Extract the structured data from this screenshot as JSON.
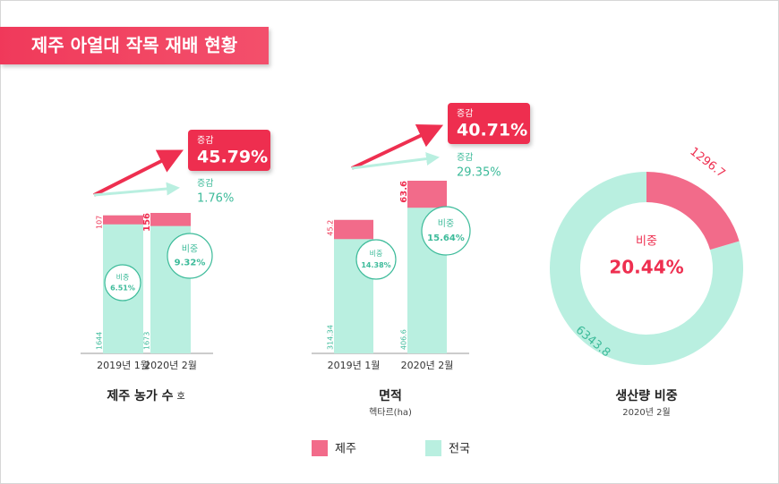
{
  "header": {
    "title": "제주 아열대 작목 재배 현황"
  },
  "chart_data": [
    {
      "type": "bar",
      "title": "제주 농가 수",
      "unit": "호",
      "categories": [
        "2019년 1월",
        "2020년 2월"
      ],
      "series": [
        {
          "name": "전국",
          "color": "#b9efe0",
          "values": [
            1644,
            1673
          ]
        },
        {
          "name": "제주",
          "color": "#f26b8a",
          "values": [
            107,
            156
          ]
        }
      ],
      "change": [
        {
          "label": "증감",
          "value": "45.79%"
        },
        {
          "label": "증감",
          "value": "1.76%"
        }
      ],
      "share": [
        {
          "label": "비중",
          "value": "6.51%"
        },
        {
          "label": "비중",
          "value": "9.32%"
        }
      ]
    },
    {
      "type": "bar",
      "title": "면적",
      "subtitle": "헥타르(ha)",
      "categories": [
        "2019년 1월",
        "2020년 2월"
      ],
      "series": [
        {
          "name": "전국",
          "color": "#b9efe0",
          "values": [
            314.34,
            406.6
          ]
        },
        {
          "name": "제주",
          "color": "#f26b8a",
          "values": [
            45.2,
            63.6
          ]
        }
      ],
      "change": [
        {
          "label": "증감",
          "value": "40.71%"
        },
        {
          "label": "증감",
          "value": "29.35%"
        }
      ],
      "share": [
        {
          "label": "비중",
          "value": "14.38%"
        },
        {
          "label": "비중",
          "value": "15.64%"
        }
      ]
    },
    {
      "type": "pie",
      "title": "생산량 비중",
      "subtitle": "2020년 2월",
      "series": [
        {
          "name": "전국",
          "color": "#b9efe0",
          "values": [
            6343.8
          ]
        },
        {
          "name": "제주",
          "color": "#f26b8a",
          "values": [
            1296.7
          ]
        }
      ],
      "center": {
        "label": "비중",
        "value": "20.44%"
      }
    }
  ]
}
